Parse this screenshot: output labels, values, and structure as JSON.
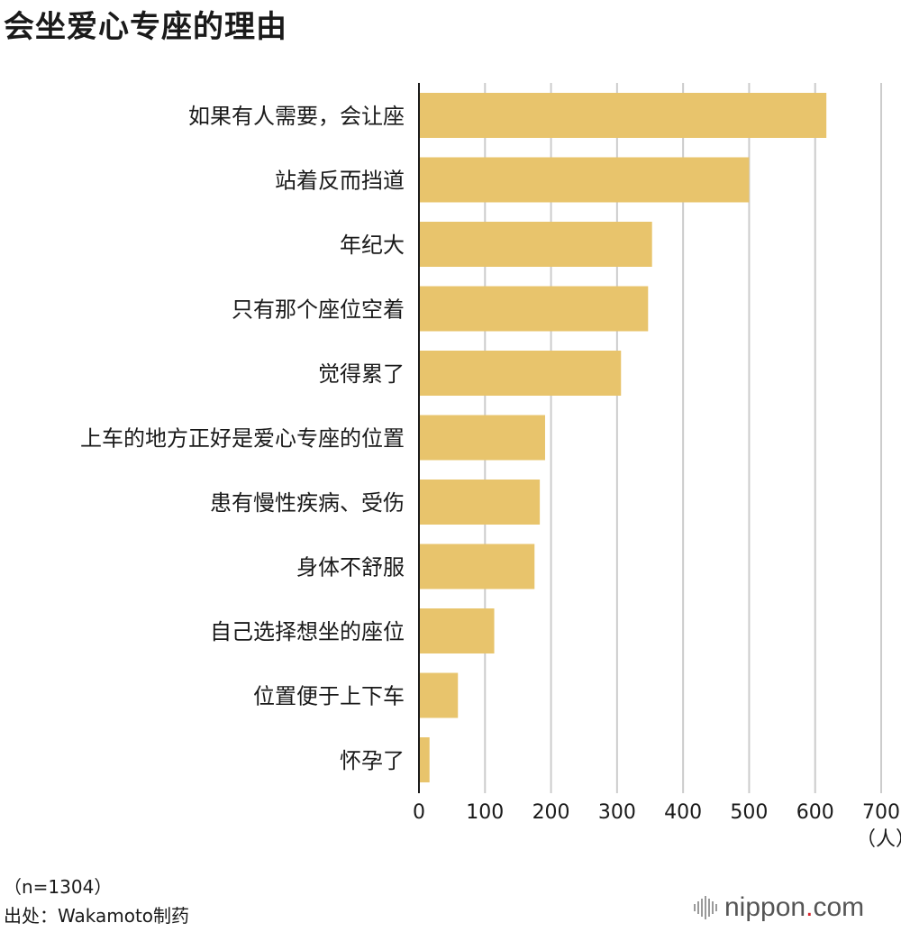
{
  "title": "会坐爱心专座的理由",
  "axis_unit": "（人）",
  "sample_size": "（n=1304）",
  "source": "出处：Wakamoto制药",
  "logo": {
    "before": "nippon",
    "dot": ".",
    "after": "com"
  },
  "colors": {
    "bar": "#E8C46C",
    "grid": "#cccccc",
    "axis": "#1a1a1a"
  },
  "chart_data": {
    "type": "bar",
    "orientation": "horizontal",
    "categories": [
      "如果有人需要，会让座",
      "站着反而挡道",
      "年纪大",
      "只有那个座位空着",
      "觉得累了",
      "上车的地方正好是爱心专座的位置",
      "患有慢性疾病、受伤",
      "身体不舒服",
      "自己选择想坐的座位",
      "位置便于上下车",
      "怀孕了"
    ],
    "values": [
      617,
      500,
      353,
      347,
      306,
      191,
      183,
      175,
      114,
      59,
      16
    ],
    "xlim": [
      0,
      700
    ],
    "xticks": [
      0,
      100,
      200,
      300,
      400,
      500,
      600,
      700
    ],
    "grid": true
  }
}
